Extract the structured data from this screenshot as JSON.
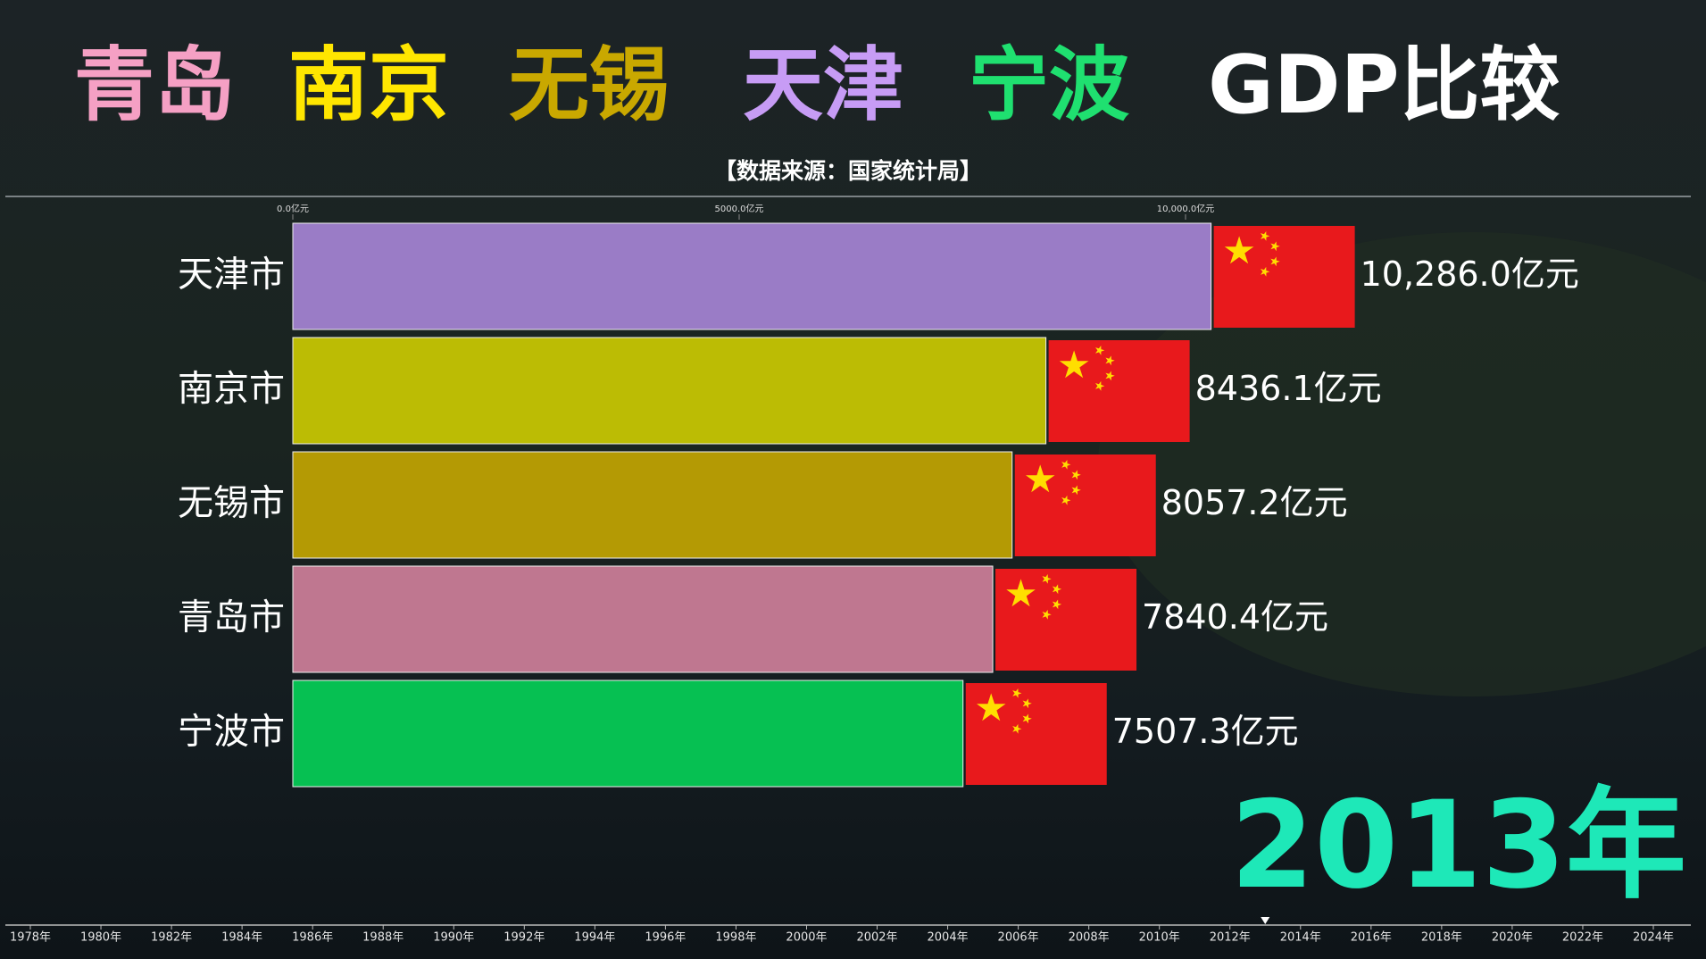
{
  "chart_data": {
    "type": "bar",
    "orientation": "horizontal",
    "title_parts": [
      {
        "text": "青岛",
        "color": "#f5a0c4"
      },
      {
        "text": "南京",
        "color": "#ffe600"
      },
      {
        "text": "无锡",
        "color": "#c9a800"
      },
      {
        "text": "天津",
        "color": "#c79cf5"
      },
      {
        "text": "宁波",
        "color": "#1fe070"
      },
      {
        "text": "GDP比较",
        "color": "#ffffff"
      }
    ],
    "subtitle": "【数据来源：国家统计局】",
    "categories": [
      "天津市",
      "南京市",
      "无锡市",
      "青岛市",
      "宁波市"
    ],
    "values": [
      10286.0,
      8436.1,
      8057.2,
      7840.4,
      7507.3
    ],
    "value_labels": [
      "10,286.0亿元",
      "8436.1亿元",
      "8057.2亿元",
      "7840.4亿元",
      "7507.3亿元"
    ],
    "colors": [
      "#9a7cc6",
      "#bcbc04",
      "#b49a04",
      "#bf7790",
      "#06c052"
    ],
    "xlim": [
      0,
      15000
    ],
    "xticks": [
      {
        "value": 0,
        "label": "0.0亿元"
      },
      {
        "value": 5000,
        "label": "5000.0亿元"
      },
      {
        "value": 10000,
        "label": "10,000.0亿元"
      }
    ],
    "year_label": "2013年",
    "year_color": "#1ee8b8",
    "timeline": {
      "lim": [
        1978,
        2024
      ],
      "current": 2013,
      "ticks": [
        {
          "value": 1978,
          "label": "1978年"
        },
        {
          "value": 1980,
          "label": "1980年"
        },
        {
          "value": 1982,
          "label": "1982年"
        },
        {
          "value": 1984,
          "label": "1984年"
        },
        {
          "value": 1986,
          "label": "1986年"
        },
        {
          "value": 1988,
          "label": "1988年"
        },
        {
          "value": 1990,
          "label": "1990年"
        },
        {
          "value": 1992,
          "label": "1992年"
        },
        {
          "value": 1994,
          "label": "1994年"
        },
        {
          "value": 1996,
          "label": "1996年"
        },
        {
          "value": 1998,
          "label": "1998年"
        },
        {
          "value": 2000,
          "label": "2000年"
        },
        {
          "value": 2002,
          "label": "2002年"
        },
        {
          "value": 2004,
          "label": "2004年"
        },
        {
          "value": 2006,
          "label": "2006年"
        },
        {
          "value": 2008,
          "label": "2008年"
        },
        {
          "value": 2010,
          "label": "2010年"
        },
        {
          "value": 2012,
          "label": "2012年"
        },
        {
          "value": 2014,
          "label": "2014年"
        },
        {
          "value": 2016,
          "label": "2016年"
        },
        {
          "value": 2018,
          "label": "2018年"
        },
        {
          "value": 2020,
          "label": "2020年"
        },
        {
          "value": 2022,
          "label": "2022年"
        },
        {
          "value": 2024,
          "label": "2024年"
        }
      ]
    }
  }
}
